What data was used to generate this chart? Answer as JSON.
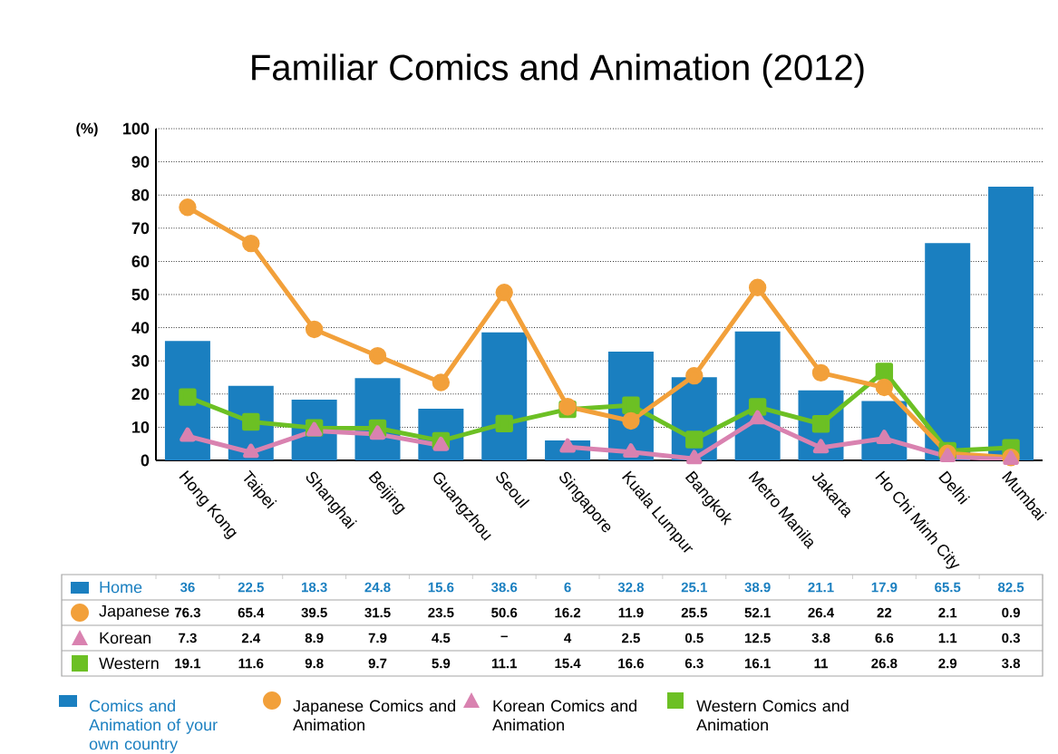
{
  "chart_data": {
    "type": "bar",
    "title": "Familiar Comics and Animation (2012)",
    "ylabel": "(%)",
    "categories": [
      "Hong Kong",
      "Taipei",
      "Shanghai",
      "Beijing",
      "Guangzhou",
      "Seoul",
      "Singapore",
      "Kuala Lumpur",
      "Bangkok",
      "Metro Manila",
      "Jakarta",
      "Ho Chi Minh City",
      "Delhi",
      "Mumbai"
    ],
    "series": [
      {
        "name": "Comics and Animation of your own country",
        "color": "#1a7fc0",
        "values": [
          36,
          22.5,
          18.3,
          24.8,
          15.6,
          38.6,
          6,
          32.8,
          25.1,
          38.9,
          21.1,
          17.9,
          65.5,
          82.5
        ],
        "value_labels": [
          "36",
          "22.5",
          "18.3",
          "24.8",
          "15.6",
          "38.6",
          "6",
          "32.8",
          "25.1",
          "38.9",
          "21.1",
          "17.9",
          "65.5",
          "82.5"
        ]
      },
      {
        "name": "Japanese Comics and Animation",
        "type": "line",
        "marker": "circle",
        "color": "#f2a03a",
        "values": [
          76.3,
          65.4,
          39.5,
          31.5,
          23.5,
          50.6,
          16.2,
          11.9,
          25.5,
          52.1,
          26.4,
          22,
          2.1,
          0.9
        ],
        "value_labels": [
          "76.3",
          "65.4",
          "39.5",
          "31.5",
          "23.5",
          "50.6",
          "16.2",
          "11.9",
          "25.5",
          "52.1",
          "26.4",
          "22",
          "2.1",
          "0.9"
        ]
      },
      {
        "name": "Korean Comics and Animation",
        "type": "line",
        "marker": "triangle",
        "color": "#d982b0",
        "values": [
          7.3,
          2.4,
          8.9,
          7.9,
          4.5,
          null,
          4,
          2.5,
          0.5,
          12.5,
          3.8,
          6.6,
          1.1,
          0.3
        ],
        "value_labels": [
          "7.3",
          "2.4",
          "8.9",
          "7.9",
          "4.5",
          "–",
          "4",
          "2.5",
          "0.5",
          "12.5",
          "3.8",
          "6.6",
          "1.1",
          "0.3"
        ]
      },
      {
        "name": "Western Comics and Animation",
        "type": "line",
        "marker": "square",
        "color": "#6cc024",
        "values": [
          19.1,
          11.6,
          9.8,
          9.7,
          5.9,
          11.1,
          15.4,
          16.6,
          6.3,
          16.1,
          11,
          26.8,
          2.9,
          3.8
        ],
        "value_labels": [
          "19.1",
          "11.6",
          "9.8",
          "9.7",
          "5.9",
          "11.1",
          "15.4",
          "16.6",
          "6.3",
          "16.1",
          "11",
          "26.8",
          "2.9",
          "3.8"
        ]
      }
    ],
    "annotations": [
      "Home",
      "Japanese",
      "Korean",
      "Western"
    ],
    "ylim": [
      0,
      100
    ],
    "yticks": [
      0,
      10,
      20,
      30,
      40,
      50,
      60,
      70,
      80,
      90,
      100
    ],
    "grid": "y",
    "legend": "bottom"
  }
}
